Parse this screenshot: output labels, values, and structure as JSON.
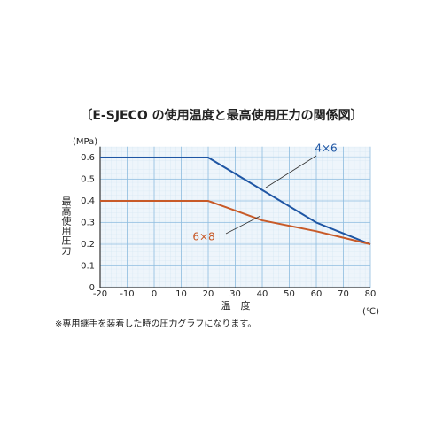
{
  "chart_data": {
    "type": "line",
    "title": "〔E-SJECO の使用温度と最高使用圧力の関係図〕",
    "y_unit": "(MPa)",
    "y_label": "最高使用圧力",
    "x_label": "温　度",
    "x_unit": "(℃)",
    "note": "※専用継手を装着した時の圧力グラフになります。",
    "xlim": [
      -20,
      80
    ],
    "xticks": [
      -20,
      -10,
      0,
      10,
      20,
      30,
      40,
      50,
      60,
      70,
      80
    ],
    "ylim": [
      0,
      0.65
    ],
    "yticks": [
      0,
      0.1,
      0.2,
      0.3,
      0.4,
      0.5,
      0.6
    ],
    "grid": true,
    "series": [
      {
        "name": "4×6",
        "color": "#1f56a4",
        "x": [
          -20,
          20,
          60,
          80
        ],
        "values": [
          0.6,
          0.6,
          0.3,
          0.2
        ]
      },
      {
        "name": "6×8",
        "color": "#c85a28",
        "x": [
          -20,
          20,
          40,
          60,
          80
        ],
        "values": [
          0.4,
          0.4,
          0.31,
          0.26,
          0.2
        ]
      }
    ]
  }
}
